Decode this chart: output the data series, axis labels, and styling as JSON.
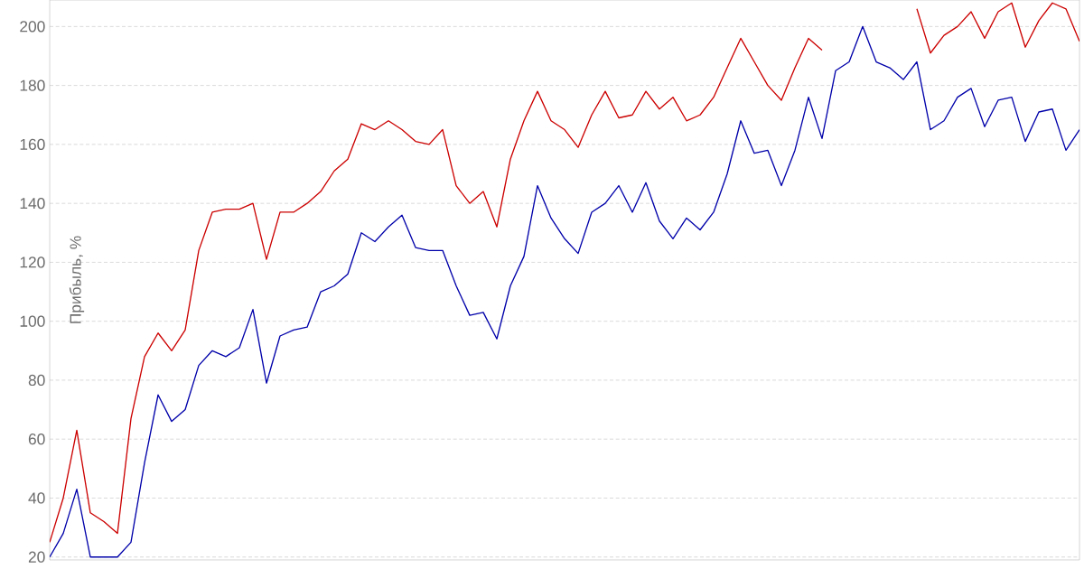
{
  "chart_data": {
    "type": "line",
    "ylabel": "Прибыль, %",
    "categories": [
      null,
      null,
      null,
      null,
      null,
      null,
      null,
      null,
      null,
      null,
      null,
      null,
      null,
      null,
      null,
      null,
      null,
      null,
      null,
      null,
      null,
      null,
      null,
      null,
      null,
      null,
      null,
      null,
      null,
      null,
      null,
      null,
      null,
      null,
      null,
      null,
      null,
      null,
      null,
      null,
      null,
      null,
      null,
      null,
      null,
      null,
      null,
      null,
      null,
      null,
      null,
      null,
      null,
      null,
      null,
      null,
      null,
      null,
      null,
      null,
      null,
      null,
      null,
      null,
      null,
      null,
      null,
      null,
      null,
      null,
      null,
      null,
      null,
      null,
      null,
      null,
      null
    ],
    "ylim": [
      19,
      209
    ],
    "yticks": [
      20,
      40,
      60,
      80,
      100,
      120,
      140,
      160,
      180,
      200
    ],
    "tick_labels": "y",
    "grid": "y",
    "marker": "none",
    "line_style": "solid",
    "series": [
      {
        "color": "#cc0000",
        "values": [
          25,
          40,
          63,
          35,
          32,
          28,
          67,
          88,
          96,
          90,
          97,
          124,
          137,
          138,
          138,
          140,
          121,
          137,
          137,
          140,
          144,
          151,
          155,
          167,
          165,
          168,
          165,
          161,
          160,
          165,
          146,
          140,
          144,
          132,
          155,
          168,
          178,
          168,
          165,
          159,
          170,
          178,
          169,
          170,
          178,
          172,
          176,
          168,
          170,
          176,
          186,
          196,
          188,
          180,
          175,
          186,
          196,
          192,
          null,
          null,
          null,
          null,
          null,
          null,
          206,
          191,
          197,
          200,
          205,
          196,
          205,
          208,
          193,
          202,
          208,
          206,
          195
        ]
      },
      {
        "color": "#0000aa",
        "values": [
          20,
          28,
          43,
          20,
          20,
          20,
          25,
          52,
          75,
          66,
          70,
          85,
          90,
          88,
          91,
          104,
          79,
          95,
          97,
          98,
          110,
          112,
          116,
          130,
          127,
          132,
          136,
          125,
          124,
          124,
          112,
          102,
          103,
          94,
          112,
          122,
          146,
          135,
          128,
          123,
          137,
          140,
          146,
          137,
          147,
          134,
          128,
          135,
          131,
          137,
          150,
          168,
          157,
          158,
          146,
          158,
          176,
          162,
          185,
          188,
          200,
          188,
          186,
          182,
          188,
          165,
          168,
          176,
          179,
          166,
          175,
          176,
          161,
          171,
          172,
          158,
          165
        ]
      }
    ]
  }
}
